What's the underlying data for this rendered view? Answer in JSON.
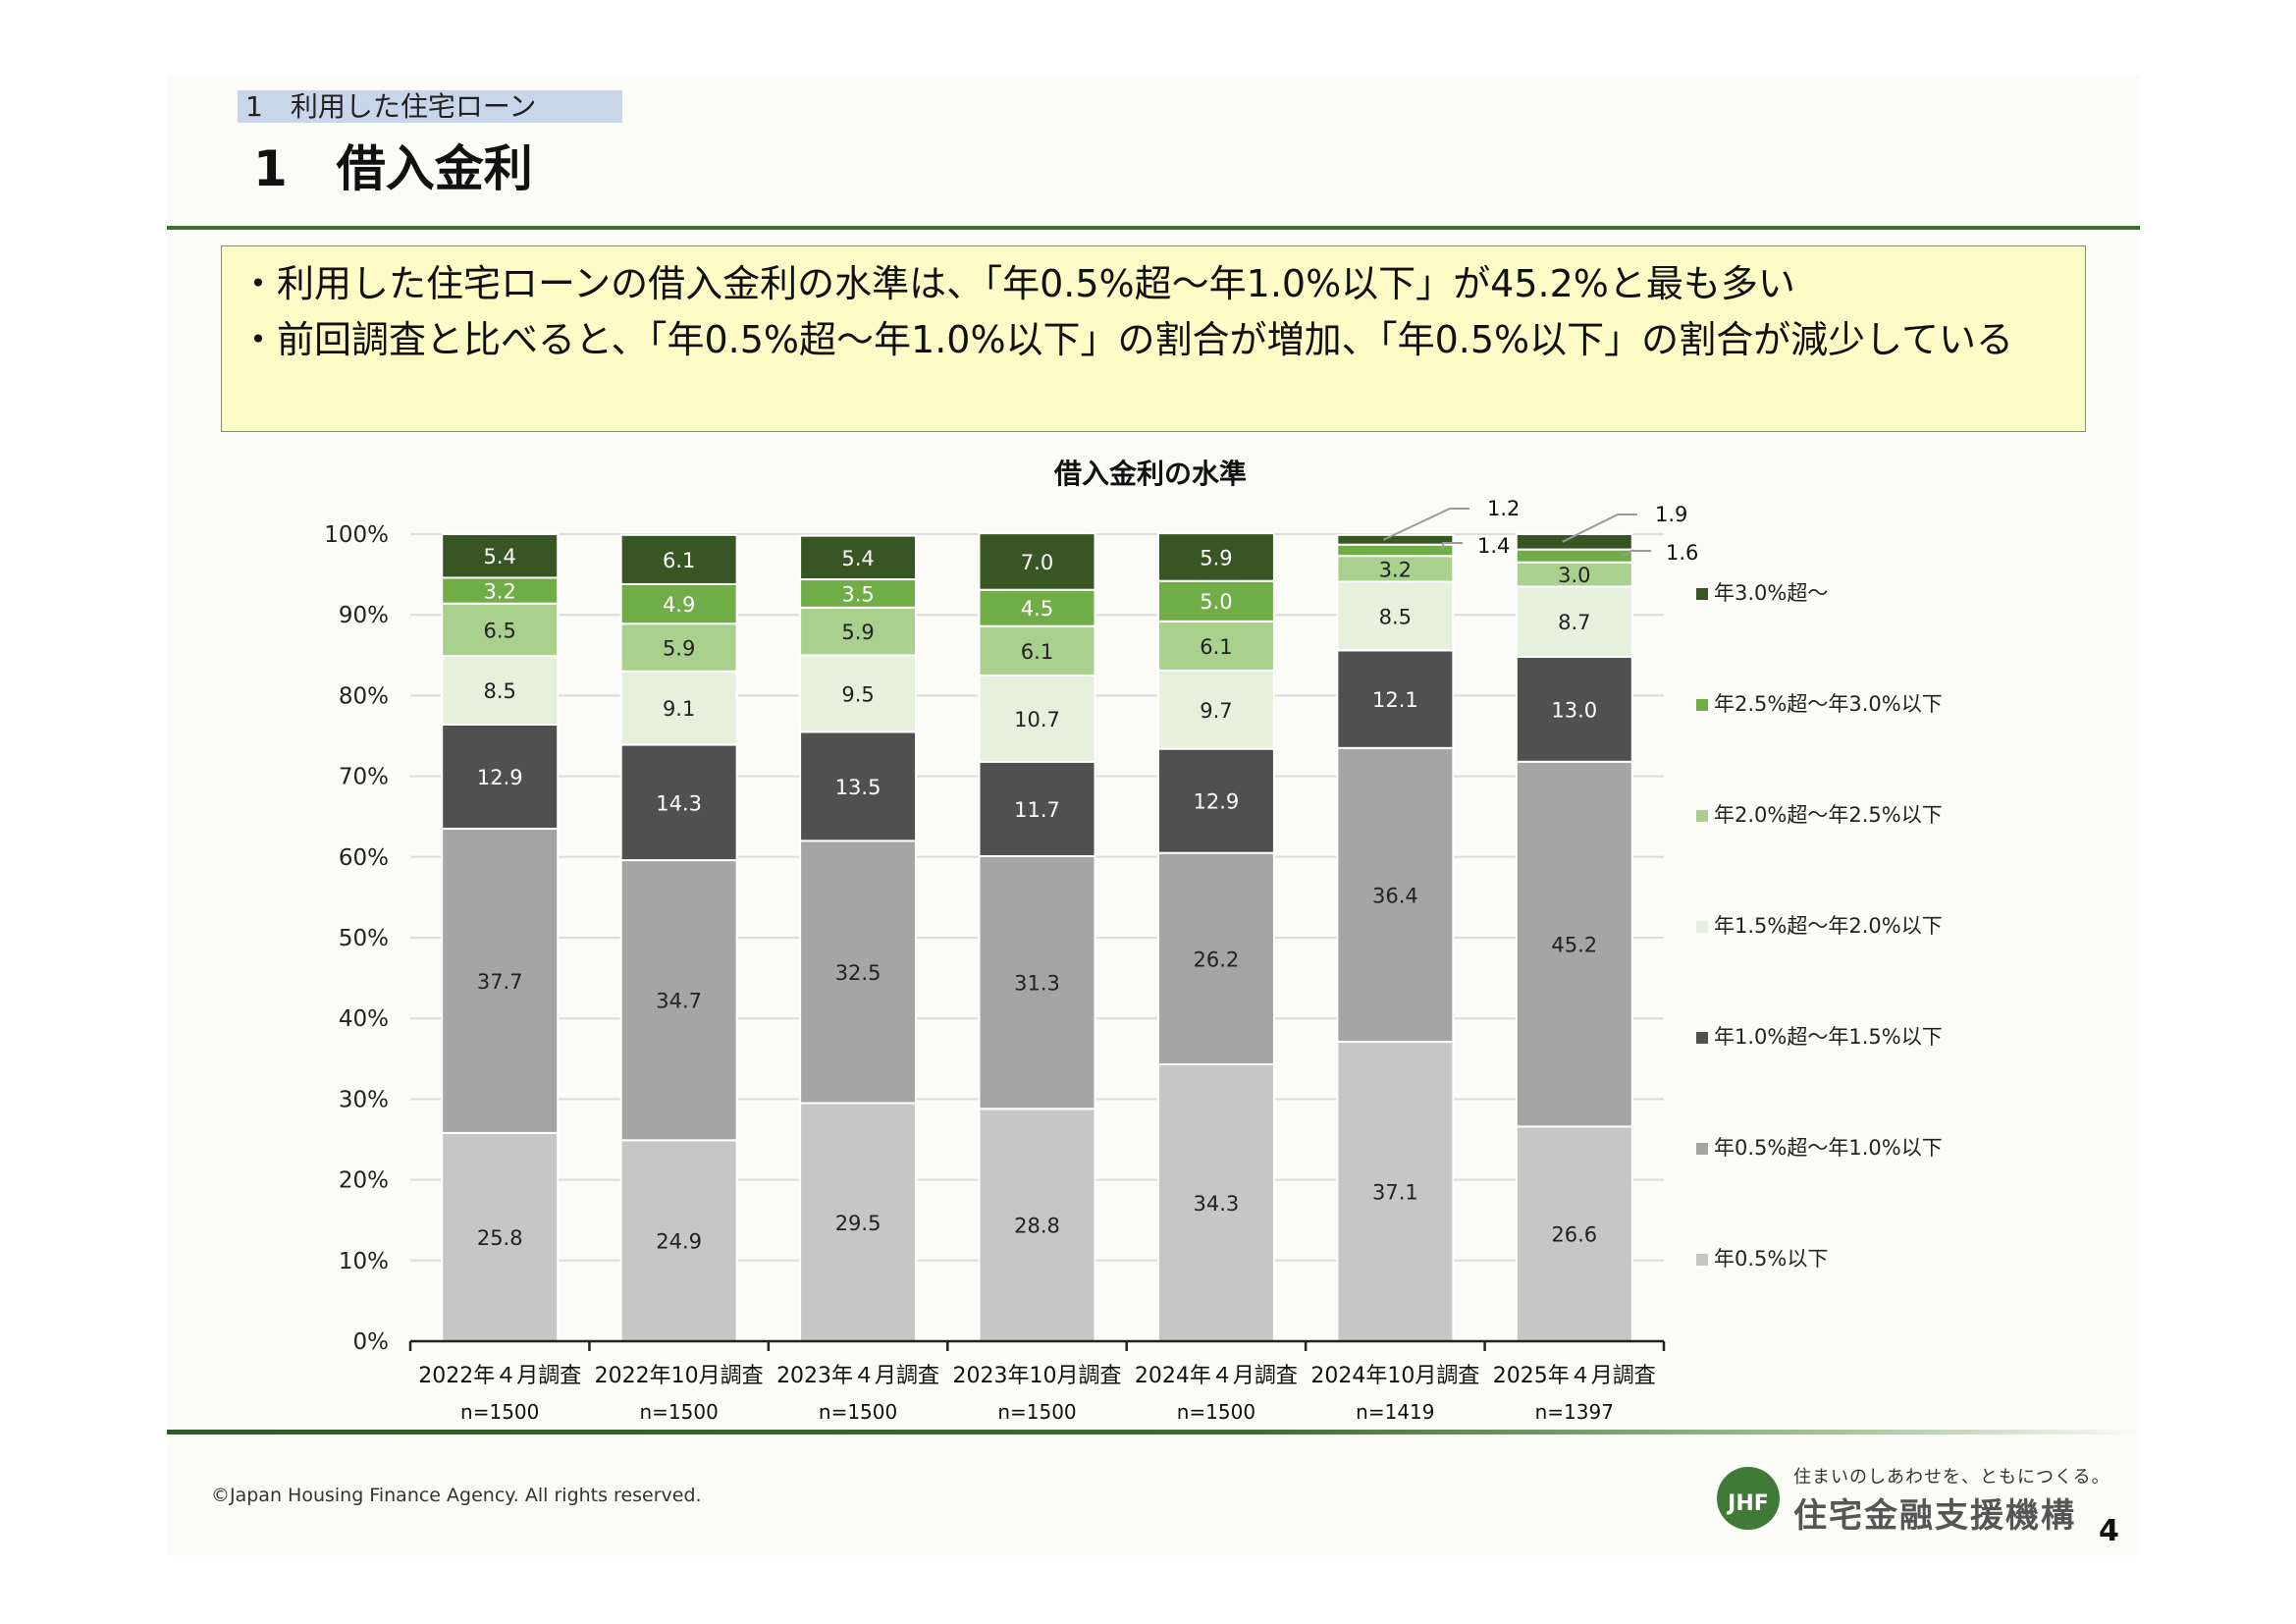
{
  "header": {
    "breadcrumb": "1　利用した住宅ローン",
    "title": "1　借入金利"
  },
  "summary": {
    "lines": [
      "・利用した住宅ローンの借入金利の水準は、「年0.5%超～年1.0%以下」が45.2%と最も多い",
      "・前回調査と比べると、「年0.5%超～年1.0%以下」の割合が増加、「年0.5%以下」の割合が減少している"
    ]
  },
  "chart_data": {
    "type": "bar",
    "stacked": true,
    "title": "借入金利の水準",
    "categories": [
      "2022年４月調査",
      "2022年10月調査",
      "2023年４月調査",
      "2023年10月調査",
      "2024年４月調査",
      "2024年10月調査",
      "2025年４月調査"
    ],
    "sample_sizes": [
      "n=1500",
      "n=1500",
      "n=1500",
      "n=1500",
      "n=1500",
      "n=1419",
      "n=1397"
    ],
    "ylim": [
      0,
      100
    ],
    "yticks": [
      "0%",
      "10%",
      "20%",
      "30%",
      "40%",
      "50%",
      "60%",
      "70%",
      "80%",
      "90%",
      "100%"
    ],
    "series": [
      {
        "name": "年0.5%以下",
        "color": "#c6c6c6",
        "label_color": "#222222",
        "values": [
          25.8,
          24.9,
          29.5,
          28.8,
          34.3,
          37.1,
          26.6
        ]
      },
      {
        "name": "年0.5%超～年1.0%以下",
        "color": "#a5a5a5",
        "label_color": "#222222",
        "values": [
          37.7,
          34.7,
          32.5,
          31.3,
          26.2,
          36.4,
          45.2
        ]
      },
      {
        "name": "年1.0%超～年1.5%以下",
        "color": "#505050",
        "label_color": "#ffffff",
        "values": [
          12.9,
          14.3,
          13.5,
          11.7,
          12.9,
          12.1,
          13.0
        ]
      },
      {
        "name": "年1.5%超～年2.0%以下",
        "color": "#e5f1dc",
        "label_color": "#222222",
        "values": [
          8.5,
          9.1,
          9.5,
          10.7,
          9.7,
          8.5,
          8.7
        ]
      },
      {
        "name": "年2.0%超～年2.5%以下",
        "color": "#aad08d",
        "label_color": "#222222",
        "values": [
          6.5,
          5.9,
          5.9,
          6.1,
          6.1,
          3.2,
          3.0
        ]
      },
      {
        "name": "年2.5%超～年3.0%以下",
        "color": "#70ad47",
        "label_color": "#ffffff",
        "values": [
          3.2,
          4.9,
          3.5,
          4.5,
          5.0,
          1.4,
          1.6
        ]
      },
      {
        "name": "年3.0%超～",
        "color": "#375623",
        "label_color": "#ffffff",
        "values": [
          5.4,
          6.1,
          5.4,
          7.0,
          5.9,
          1.2,
          1.9
        ]
      }
    ],
    "legend_position": "right",
    "legend_order": [
      6,
      5,
      4,
      3,
      2,
      1,
      0
    ],
    "callouts": [
      {
        "category": 5,
        "series": 6,
        "text": "1.2"
      },
      {
        "category": 5,
        "series": 5,
        "text": "1.4"
      },
      {
        "category": 6,
        "series": 6,
        "text": "1.9"
      },
      {
        "category": 6,
        "series": 5,
        "text": "1.6"
      }
    ]
  },
  "footer": {
    "copyright": "©Japan Housing Finance Agency. All rights reserved.",
    "tagline": "住まいのしあわせを、ともにつくる。",
    "org_name": "住宅金融支援機構",
    "logo_mark_text": "JHF",
    "page_number": "4"
  },
  "colors": {
    "accent_green": "#3f6b34",
    "summary_bg": "#fdfcc6",
    "crumb_bg": "#c9d6ea"
  }
}
